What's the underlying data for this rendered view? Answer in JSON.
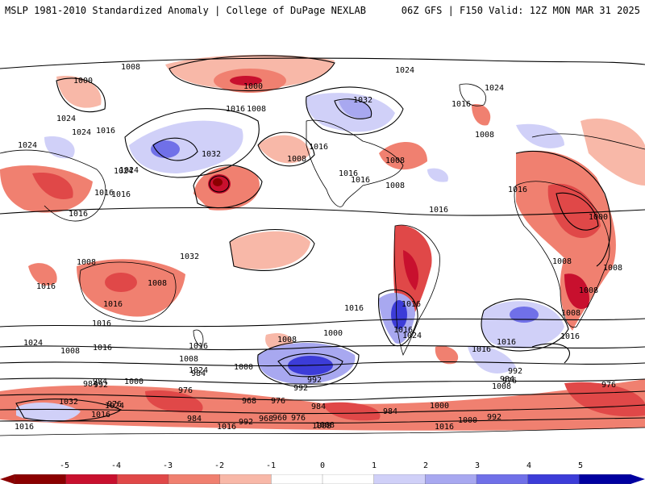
{
  "header": {
    "left_title": "MSLP 1981-2010 Standardized Anomaly | College of DuPage NEXLAB",
    "right_title": "06Z GFS | F150 Valid: 12Z MON MAR 31 2025"
  },
  "map": {
    "isobar_labels": [
      "1000",
      "1008",
      "1024",
      "1016",
      "1008",
      "1016",
      "1024",
      "1024",
      "1032",
      "1000",
      "1008",
      "1032",
      "1016",
      "1016",
      "1008",
      "1016",
      "1016",
      "1008",
      "1016",
      "1024",
      "1016",
      "1032",
      "1016",
      "1024",
      "1008",
      "1016",
      "1024",
      "1024",
      "1016",
      "1016",
      "1008",
      "1008",
      "1016",
      "1000",
      "1008",
      "1008",
      "1008",
      "1008",
      "1016",
      "1016",
      "1016",
      "1016",
      "1016",
      "1024",
      "1016",
      "1016",
      "1024",
      "1000",
      "1016",
      "1016",
      "1008",
      "1000",
      "992",
      "1008",
      "1024",
      "1008",
      "984",
      "1000",
      "992",
      "1008",
      "992",
      "984",
      "976",
      "1000",
      "992",
      "984",
      "984",
      "976",
      "1032",
      "976",
      "968",
      "976",
      "984",
      "1024",
      "1008",
      "984",
      "1016",
      "992",
      "968",
      "960",
      "976",
      "984",
      "1000",
      "992",
      "1016",
      "1008",
      "1016",
      "1016",
      "976"
    ],
    "colors": {
      "neg5": "#8b0000",
      "neg4": "#c8102e",
      "neg3": "#e04848",
      "neg2": "#f08070",
      "neg1": "#f8b8a8",
      "pos1": "#d0d0f8",
      "pos2": "#a8a8f0",
      "pos3": "#7070e8",
      "pos4": "#3c3cd8",
      "pos5": "#0000a0",
      "coast": "#000000"
    }
  },
  "colorbar": {
    "ticks": [
      "-5",
      "-4",
      "-3",
      "-2",
      "-1",
      "0",
      "1",
      "2",
      "3",
      "4",
      "5"
    ]
  }
}
